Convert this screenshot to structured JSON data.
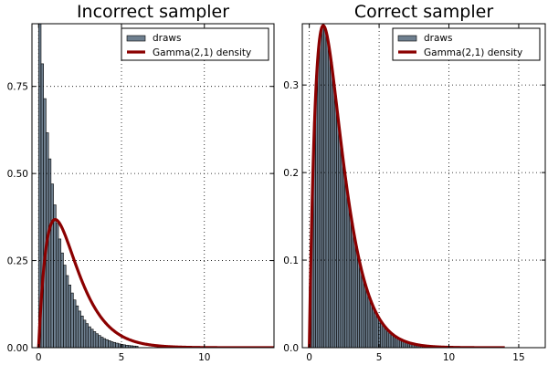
{
  "chart_data": [
    {
      "type": "bar",
      "title": "Incorrect sampler",
      "xlabel": "",
      "ylabel": "",
      "xlim": [
        -0.4,
        14.2
      ],
      "ylim": [
        0,
        0.93
      ],
      "xticks": [
        0,
        5,
        10
      ],
      "yticks": [
        0,
        0.25,
        0.5,
        0.75
      ],
      "xtick_labels": [
        "0",
        "5",
        "10"
      ],
      "ytick_labels": [
        "0.00",
        "0.25",
        "0.50",
        "0.75"
      ],
      "grid": true,
      "legend": {
        "position": "top-right",
        "entries": [
          "draws",
          "Gamma(2,1) density"
        ]
      },
      "series": [
        {
          "name": "draws",
          "kind": "histogram",
          "color": "#6e7f8f",
          "bin_width": 0.15,
          "bins_start": 0,
          "values": [
            0.93,
            0.815,
            0.715,
            0.617,
            0.542,
            0.47,
            0.41,
            0.357,
            0.312,
            0.272,
            0.237,
            0.207,
            0.18,
            0.157,
            0.137,
            0.12,
            0.105,
            0.091,
            0.079,
            0.069,
            0.06,
            0.053,
            0.046,
            0.04,
            0.035,
            0.03,
            0.026,
            0.023,
            0.02,
            0.017,
            0.015,
            0.013,
            0.011,
            0.0095,
            0.0082,
            0.0071,
            0.0062,
            0.0054,
            0.0047,
            0.0041
          ]
        },
        {
          "name": "Gamma(2,1) density",
          "kind": "line",
          "color": "#8b0000",
          "function": "gamma_2_1",
          "x_range": [
            0,
            14.2
          ]
        }
      ]
    },
    {
      "type": "bar",
      "title": "Correct sampler",
      "xlabel": "",
      "ylabel": "",
      "xlim": [
        -0.5,
        16.9
      ],
      "ylim": [
        0,
        0.37
      ],
      "xticks": [
        0,
        5,
        10,
        15
      ],
      "yticks": [
        0,
        0.1,
        0.2,
        0.3
      ],
      "xtick_labels": [
        "0",
        "5",
        "10",
        "15"
      ],
      "ytick_labels": [
        "0.0",
        "0.1",
        "0.2",
        "0.3"
      ],
      "grid": true,
      "legend": {
        "position": "top-right",
        "entries": [
          "draws",
          "Gamma(2,1) density"
        ]
      },
      "series": [
        {
          "name": "draws",
          "kind": "histogram",
          "color": "#6e7f8f",
          "bin_width": 0.15,
          "bins_start": 0,
          "range": [
            0,
            15.6
          ],
          "values_from": "gamma_2_1"
        },
        {
          "name": "Gamma(2,1) density",
          "kind": "line",
          "color": "#8b0000",
          "function": "gamma_2_1",
          "x_range": [
            0,
            14.0
          ]
        }
      ]
    }
  ]
}
